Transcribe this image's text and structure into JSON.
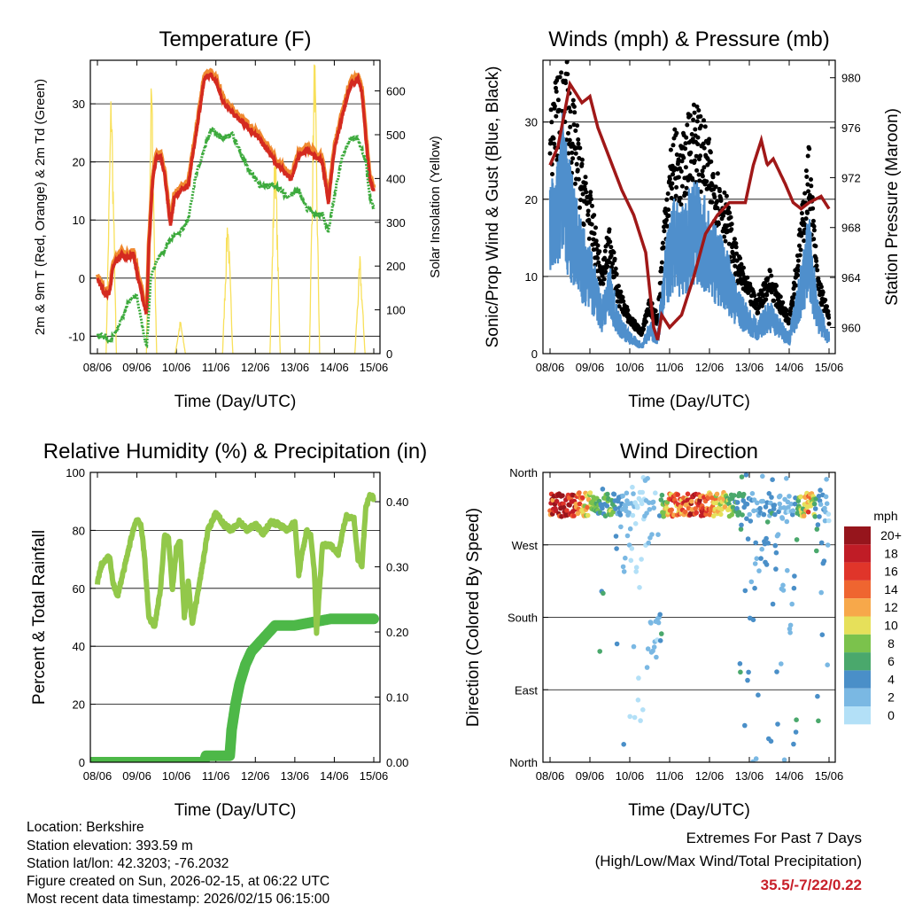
{
  "footer": {
    "location": "Location: Berkshire",
    "elevation": "Station elevation: 393.59 m",
    "latlon": "Station lat/lon: 42.3203; -76.2032",
    "created": "Figure created on Sun, 2026-02-15, at 06:22 UTC",
    "recent": "Most recent data timestamp: 2026/02/15 06:15:00",
    "extremes_title": "Extremes For Past 7 Days",
    "extremes_sub": "(High/Low/Max Wind/Total Precipitation)",
    "extremes_value": "35.5/-7/22/0.22"
  },
  "chart_data": [
    {
      "type": "line",
      "title": "Temperature (F)",
      "xlabel": "Time (Day/UTC)",
      "ylabel": "2m & 9m T (Red, Orange) & 2m Td (Green)",
      "ylabel_right": "Solar Insolation (Yellow)",
      "xticks": [
        "08/06",
        "09/06",
        "10/06",
        "11/06",
        "12/06",
        "13/06",
        "14/06",
        "15/06"
      ],
      "yticks": [
        {
          "v": -10,
          "l": "-10"
        },
        {
          "v": 0,
          "l": "0"
        },
        {
          "v": 10,
          "l": "10"
        },
        {
          "v": 20,
          "l": "20"
        },
        {
          "v": 30,
          "l": "30"
        }
      ],
      "yticks_right": [
        {
          "v": 0,
          "l": "0"
        },
        {
          "v": 100,
          "l": "100"
        },
        {
          "v": 200,
          "l": "200"
        },
        {
          "v": 300,
          "l": "300"
        },
        {
          "v": 400,
          "l": "400"
        },
        {
          "v": 500,
          "l": "500"
        },
        {
          "v": 600,
          "l": "600"
        }
      ],
      "ylim": [
        -13,
        37.5
      ],
      "ylim_right": [
        0,
        670
      ],
      "xlim_days": [
        0,
        7
      ],
      "colors": {
        "t2m": "#d42a20",
        "t9m": "#f08a30",
        "td": "#3caa3c",
        "solar": "#f8e05a"
      },
      "series": {
        "t2m": [
          [
            0,
            0
          ],
          [
            0.2,
            -3
          ],
          [
            0.3,
            -2.5
          ],
          [
            0.4,
            2
          ],
          [
            0.6,
            4
          ],
          [
            0.8,
            3.5
          ],
          [
            0.9,
            4.5
          ],
          [
            1.0,
            1
          ],
          [
            1.1,
            -2
          ],
          [
            1.2,
            -5
          ],
          [
            1.25,
            -6
          ],
          [
            1.3,
            5
          ],
          [
            1.4,
            17
          ],
          [
            1.5,
            21
          ],
          [
            1.6,
            21
          ],
          [
            1.7,
            18
          ],
          [
            1.85,
            9
          ],
          [
            1.95,
            14
          ],
          [
            2.1,
            15
          ],
          [
            2.3,
            16
          ],
          [
            2.5,
            25
          ],
          [
            2.7,
            34
          ],
          [
            2.85,
            35
          ],
          [
            3.0,
            34
          ],
          [
            3.2,
            30
          ],
          [
            3.5,
            28
          ],
          [
            3.8,
            26
          ],
          [
            4.1,
            24
          ],
          [
            4.5,
            20
          ],
          [
            4.9,
            17
          ],
          [
            5.1,
            21
          ],
          [
            5.3,
            22
          ],
          [
            5.5,
            21
          ],
          [
            5.7,
            20
          ],
          [
            5.85,
            13
          ],
          [
            6.0,
            22
          ],
          [
            6.2,
            28
          ],
          [
            6.4,
            33
          ],
          [
            6.6,
            34.5
          ],
          [
            6.7,
            32
          ],
          [
            6.8,
            24
          ],
          [
            6.9,
            17
          ],
          [
            7.0,
            15
          ]
        ],
        "td": [
          [
            0,
            -10
          ],
          [
            0.2,
            -10
          ],
          [
            0.3,
            -11
          ],
          [
            0.5,
            -9
          ],
          [
            0.8,
            -4
          ],
          [
            1.0,
            -3
          ],
          [
            1.1,
            -7
          ],
          [
            1.25,
            -12
          ],
          [
            1.35,
            0
          ],
          [
            1.5,
            3
          ],
          [
            1.7,
            5
          ],
          [
            1.9,
            7
          ],
          [
            2.1,
            8
          ],
          [
            2.3,
            10
          ],
          [
            2.5,
            18
          ],
          [
            2.7,
            22
          ],
          [
            2.9,
            26
          ],
          [
            3.0,
            25
          ],
          [
            3.2,
            24
          ],
          [
            3.4,
            25
          ],
          [
            3.6,
            22
          ],
          [
            3.8,
            19
          ],
          [
            4.1,
            16
          ],
          [
            4.5,
            16
          ],
          [
            4.8,
            14
          ],
          [
            5.1,
            15
          ],
          [
            5.3,
            12
          ],
          [
            5.5,
            11
          ],
          [
            5.7,
            11
          ],
          [
            5.85,
            8
          ],
          [
            6.0,
            14
          ],
          [
            6.2,
            21
          ],
          [
            6.4,
            24
          ],
          [
            6.6,
            24
          ],
          [
            6.8,
            20
          ],
          [
            6.9,
            14
          ],
          [
            7.0,
            12
          ]
        ],
        "solar_peaks": [
          [
            0.35,
            570
          ],
          [
            1.37,
            580
          ],
          [
            2.1,
            70
          ],
          [
            3.3,
            300
          ],
          [
            4.5,
            450
          ],
          [
            5.5,
            640
          ],
          [
            6.65,
            200
          ]
        ]
      }
    },
    {
      "type": "scatter",
      "title": "Winds (mph) & Pressure (mb)",
      "xlabel": "Time (Day/UTC)",
      "ylabel": "Sonic/Prop Wind & Gust (Blue, Black)",
      "ylabel_right": "Station Pressure (Maroon)",
      "xticks": [
        "08/06",
        "09/06",
        "10/06",
        "11/06",
        "12/06",
        "13/06",
        "14/06",
        "15/06"
      ],
      "yticks": [
        {
          "v": 0,
          "l": "0"
        },
        {
          "v": 10,
          "l": "10"
        },
        {
          "v": 20,
          "l": "20"
        },
        {
          "v": 30,
          "l": "30"
        }
      ],
      "yticks_right": [
        {
          "v": 960,
          "l": "960"
        },
        {
          "v": 964,
          "l": "964"
        },
        {
          "v": 968,
          "l": "968"
        },
        {
          "v": 972,
          "l": "972"
        },
        {
          "v": 976,
          "l": "976"
        },
        {
          "v": 980,
          "l": "980"
        }
      ],
      "ylim": [
        0,
        38
      ],
      "ylim_right": [
        957.9,
        981.4
      ],
      "colors": {
        "wind": "#4f8fcc",
        "gust": "#000000",
        "pressure": "#a01818"
      },
      "series": {
        "wind": [
          [
            0,
            15
          ],
          [
            0.2,
            18
          ],
          [
            0.3,
            22
          ],
          [
            0.5,
            17
          ],
          [
            0.8,
            12
          ],
          [
            1.0,
            10
          ],
          [
            1.3,
            5
          ],
          [
            1.5,
            8
          ],
          [
            1.7,
            4
          ],
          [
            2.0,
            2
          ],
          [
            2.3,
            1
          ],
          [
            2.5,
            3
          ],
          [
            2.7,
            2
          ],
          [
            2.9,
            10
          ],
          [
            3.1,
            14
          ],
          [
            3.3,
            13
          ],
          [
            3.6,
            16
          ],
          [
            3.9,
            14
          ],
          [
            4.1,
            12
          ],
          [
            4.4,
            10
          ],
          [
            4.7,
            6
          ],
          [
            5.0,
            4
          ],
          [
            5.2,
            3
          ],
          [
            5.5,
            5
          ],
          [
            5.8,
            3
          ],
          [
            6.0,
            2
          ],
          [
            6.2,
            6
          ],
          [
            6.5,
            13
          ],
          [
            6.7,
            5
          ],
          [
            6.9,
            3
          ],
          [
            7.0,
            2
          ]
        ],
        "pressure": [
          [
            0,
            973
          ],
          [
            0.2,
            974.5
          ],
          [
            0.5,
            979.5
          ],
          [
            0.8,
            978
          ],
          [
            1.0,
            978.5
          ],
          [
            1.2,
            976
          ],
          [
            1.5,
            973.5
          ],
          [
            1.8,
            971
          ],
          [
            2.1,
            969
          ],
          [
            2.4,
            966
          ],
          [
            2.6,
            960
          ],
          [
            2.7,
            959
          ],
          [
            2.8,
            961
          ],
          [
            3.0,
            960
          ],
          [
            3.3,
            961
          ],
          [
            3.6,
            964
          ],
          [
            3.9,
            967.5
          ],
          [
            4.2,
            969
          ],
          [
            4.5,
            970
          ],
          [
            4.9,
            970
          ],
          [
            5.1,
            973
          ],
          [
            5.3,
            975
          ],
          [
            5.45,
            973
          ],
          [
            5.6,
            973.5
          ],
          [
            5.9,
            971.5
          ],
          [
            6.1,
            970
          ],
          [
            6.3,
            969.5
          ],
          [
            6.5,
            970
          ],
          [
            6.8,
            970.5
          ],
          [
            7.0,
            969.5
          ]
        ]
      }
    },
    {
      "type": "line",
      "title": "Relative Humidity (%) & Precipitation (in)",
      "xlabel": "Time (Day/UTC)",
      "ylabel": "Percent & Total Rainfall",
      "xticks": [
        "08/06",
        "09/06",
        "10/06",
        "11/06",
        "12/06",
        "13/06",
        "14/06",
        "15/06"
      ],
      "yticks": [
        {
          "v": 0,
          "l": "0"
        },
        {
          "v": 20,
          "l": "20"
        },
        {
          "v": 40,
          "l": "40"
        },
        {
          "v": 60,
          "l": "60"
        },
        {
          "v": 80,
          "l": "80"
        },
        {
          "v": 100,
          "l": "100"
        }
      ],
      "yticks_right": [
        {
          "v": 0,
          "l": "0.00"
        },
        {
          "v": 0.1,
          "l": "0.10"
        },
        {
          "v": 0.2,
          "l": "0.20"
        },
        {
          "v": 0.3,
          "l": "0.30"
        },
        {
          "v": 0.4,
          "l": "0.40"
        }
      ],
      "ylim": [
        0,
        100
      ],
      "ylim_right": [
        0,
        0.445
      ],
      "colors": {
        "rh": "#92c84a",
        "precip": "#4db848"
      },
      "series": {
        "rh": [
          [
            0,
            62
          ],
          [
            0.1,
            68
          ],
          [
            0.3,
            71
          ],
          [
            0.4,
            62
          ],
          [
            0.5,
            57
          ],
          [
            0.7,
            68
          ],
          [
            0.9,
            80
          ],
          [
            1.0,
            84
          ],
          [
            1.1,
            82
          ],
          [
            1.2,
            70
          ],
          [
            1.3,
            50
          ],
          [
            1.45,
            47
          ],
          [
            1.6,
            60
          ],
          [
            1.7,
            78
          ],
          [
            1.8,
            77
          ],
          [
            1.9,
            60
          ],
          [
            2.0,
            74
          ],
          [
            2.1,
            76
          ],
          [
            2.2,
            50
          ],
          [
            2.3,
            62
          ],
          [
            2.4,
            48
          ],
          [
            2.5,
            55
          ],
          [
            2.6,
            63
          ],
          [
            2.8,
            80
          ],
          [
            3.0,
            86
          ],
          [
            3.2,
            82
          ],
          [
            3.4,
            80
          ],
          [
            3.6,
            83
          ],
          [
            3.8,
            80
          ],
          [
            4.0,
            82
          ],
          [
            4.2,
            79
          ],
          [
            4.4,
            83
          ],
          [
            4.6,
            82
          ],
          [
            4.8,
            80
          ],
          [
            5.0,
            83
          ],
          [
            5.1,
            65
          ],
          [
            5.2,
            73
          ],
          [
            5.3,
            80
          ],
          [
            5.4,
            78
          ],
          [
            5.5,
            65
          ],
          [
            5.55,
            45
          ],
          [
            5.7,
            75
          ],
          [
            5.9,
            75
          ],
          [
            6.1,
            72
          ],
          [
            6.3,
            85
          ],
          [
            6.5,
            84
          ],
          [
            6.6,
            70
          ],
          [
            6.7,
            68
          ],
          [
            6.8,
            88
          ],
          [
            6.9,
            92
          ],
          [
            7.0,
            91
          ]
        ],
        "precip": [
          [
            -0.15,
            0
          ],
          [
            2.7,
            0
          ],
          [
            2.75,
            0.01
          ],
          [
            3.35,
            0.01
          ],
          [
            3.4,
            0.05
          ],
          [
            3.5,
            0.09
          ],
          [
            3.6,
            0.12
          ],
          [
            3.75,
            0.15
          ],
          [
            3.9,
            0.17
          ],
          [
            4.2,
            0.19
          ],
          [
            4.5,
            0.21
          ],
          [
            5.0,
            0.21
          ],
          [
            5.9,
            0.22
          ],
          [
            7.0,
            0.22
          ]
        ]
      }
    },
    {
      "type": "scatter",
      "title": "Wind Direction",
      "xlabel": "Time (Day/UTC)",
      "ylabel": "Direction (Colored By Speed)",
      "xticks": [
        "08/06",
        "09/06",
        "10/06",
        "11/06",
        "12/06",
        "13/06",
        "14/06",
        "15/06"
      ],
      "yticks": [
        {
          "v": 0,
          "l": "North"
        },
        {
          "v": 90,
          "l": "East"
        },
        {
          "v": 180,
          "l": "South"
        },
        {
          "v": 270,
          "l": "West"
        },
        {
          "v": 360,
          "l": "North"
        }
      ],
      "ylim": [
        0,
        360
      ],
      "legend": {
        "title": "mph",
        "placement": "right",
        "entries": [
          {
            "l": "20+",
            "c": "#96151c"
          },
          {
            "l": "18",
            "c": "#c01c26"
          },
          {
            "l": "16",
            "c": "#e0352a"
          },
          {
            "l": "14",
            "c": "#ef6530"
          },
          {
            "l": "12",
            "c": "#f7a84a"
          },
          {
            "l": "10",
            "c": "#e6e05a"
          },
          {
            "l": "8",
            "c": "#7bc24c"
          },
          {
            "l": "6",
            "c": "#4aa86c"
          },
          {
            "l": "4",
            "c": "#4a8fc8"
          },
          {
            "l": "2",
            "c": "#7ab8e3"
          },
          {
            "l": "0",
            "c": "#b3e0f7"
          }
        ]
      },
      "typical_direction_deg": 320
    }
  ]
}
